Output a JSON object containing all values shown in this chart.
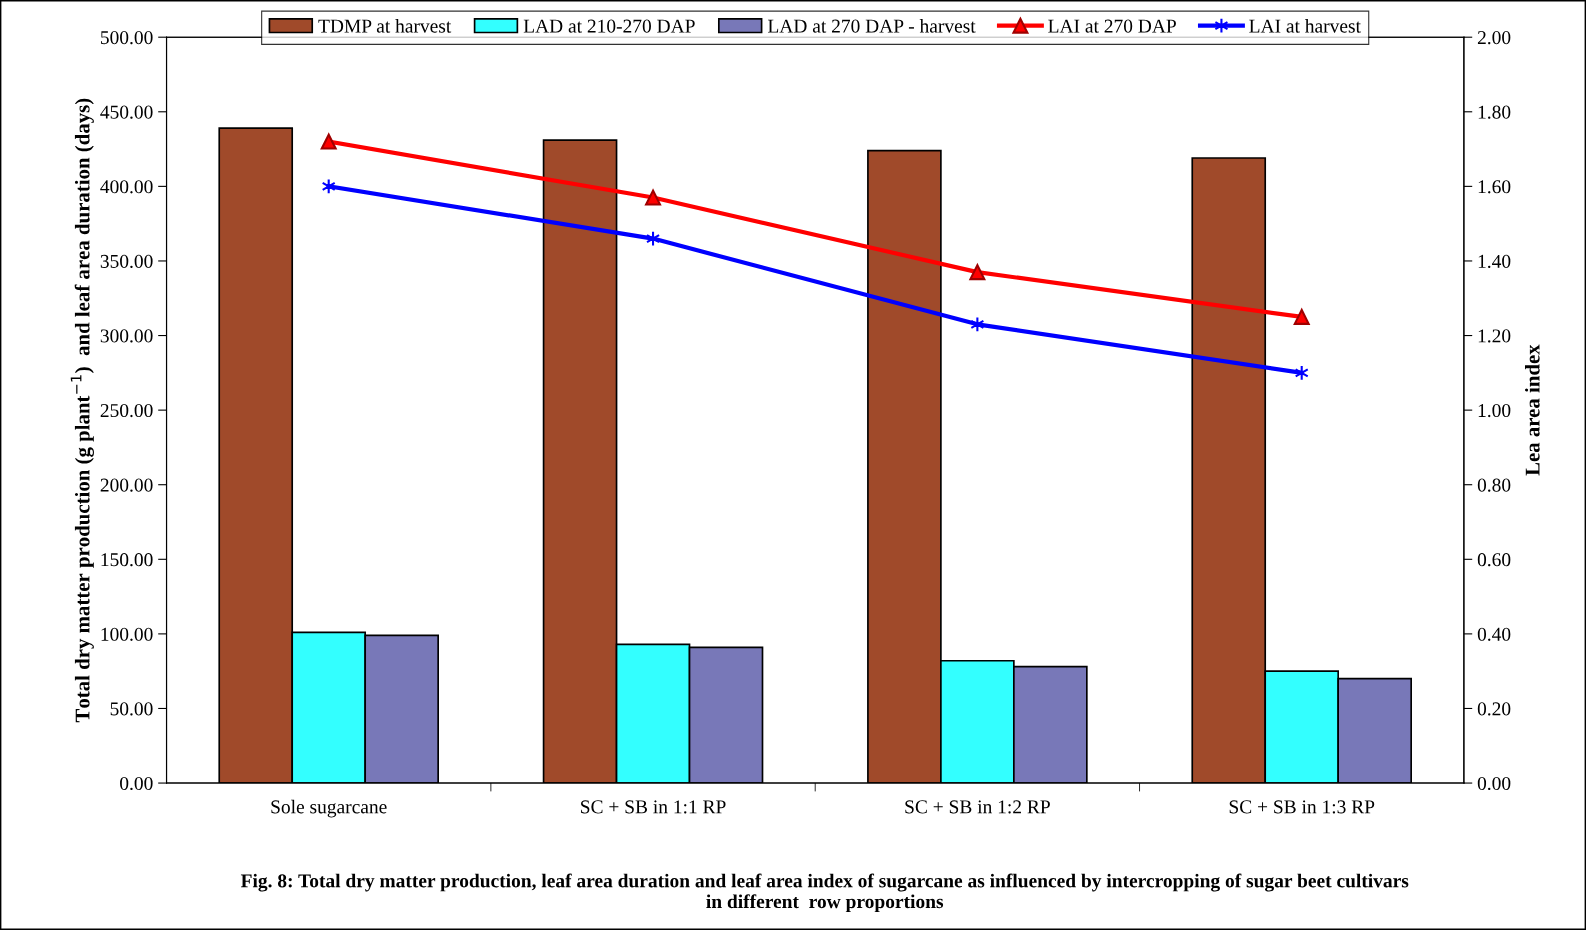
{
  "chart_data": {
    "type": "bar",
    "title": "Fig. 8: Total dry matter production, leaf area duration and leaf area index of sugarcane as influenced by intercropping of sugar beet cultivars\nin different  row proportions",
    "ylabel": "Total dry matter production (g plant$^{−1}$)  and leaf area duration (days)",
    "y2label": "Lea area index",
    "categories": [
      "Sole sugarcane",
      "SC + SB in 1:1 RP",
      "SC + SB in 1:2 RP",
      "SC + SB in 1:3 RP"
    ],
    "series": [
      {
        "name": "TDMP at harvest",
        "color": "#a04a2a",
        "values": [
          439,
          431,
          424,
          419
        ]
      },
      {
        "name": "LAD at 210-270 DAP",
        "color": "#33ffff",
        "values": [
          101,
          93,
          82,
          75
        ]
      },
      {
        "name": "LAD at 270 DAP - harvest",
        "color": "#7878b8",
        "values": [
          99,
          91,
          78,
          70
        ]
      },
      {
        "name": "LAI at 270 DAP",
        "type": "line",
        "axis": "y2",
        "marker": "triangle",
        "color": "#ff0000",
        "values": [
          1.72,
          1.57,
          1.37,
          1.25
        ]
      },
      {
        "name": "LAI at harvest",
        "type": "line",
        "axis": "y2",
        "marker": "cross",
        "color": "#0000ff",
        "values": [
          1.6,
          1.46,
          1.23,
          1.1
        ]
      }
    ],
    "ylim": [
      0,
      500
    ],
    "yticks": [
      {
        "value": 0,
        "label": "0.00"
      },
      {
        "value": 50,
        "label": "50.00"
      },
      {
        "value": 100,
        "label": "100.00"
      },
      {
        "value": 150,
        "label": "150.00"
      },
      {
        "value": 200,
        "label": "200.00"
      },
      {
        "value": 250,
        "label": "250.00"
      },
      {
        "value": 300,
        "label": "300.00"
      },
      {
        "value": 350,
        "label": "350.00"
      },
      {
        "value": 400,
        "label": "400.00"
      },
      {
        "value": 450,
        "label": "450.00"
      },
      {
        "value": 500,
        "label": "500.00"
      }
    ],
    "y2lim": [
      0,
      2
    ],
    "y2ticks": [
      {
        "value": 0,
        "label": "0.00"
      },
      {
        "value": 0.2,
        "label": "0.20"
      },
      {
        "value": 0.4,
        "label": "0.40"
      },
      {
        "value": 0.6,
        "label": "0.60"
      },
      {
        "value": 0.8,
        "label": "0.80"
      },
      {
        "value": 1.0,
        "label": "1.00"
      },
      {
        "value": 1.2,
        "label": "1.20"
      },
      {
        "value": 1.4,
        "label": "1.40"
      },
      {
        "value": 1.6,
        "label": "1.60"
      },
      {
        "value": 1.8,
        "label": "1.80"
      },
      {
        "value": 2.0,
        "label": "2.00"
      }
    ],
    "legend": "top",
    "grid": false
  }
}
